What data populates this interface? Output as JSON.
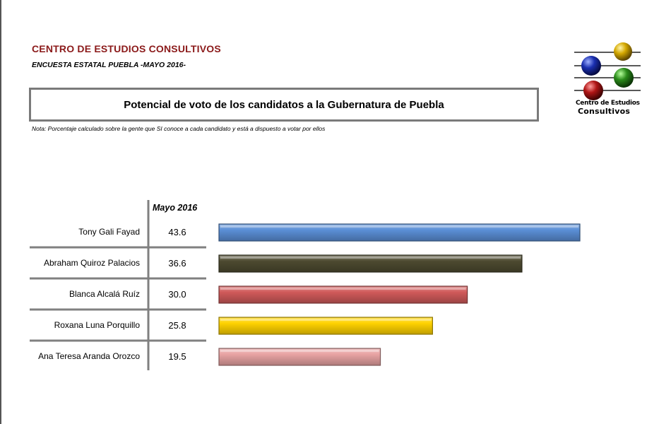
{
  "header": {
    "org_title": "CENTRO DE ESTUDIOS CONSULTIVOS",
    "survey_title": "ENCUESTA ESTATAL PUEBLA -MAYO 2016-",
    "chart_title": "Potencial de voto de los candidatos a la Gubernatura de Puebla",
    "note": "Nota: Porcentaje calculado sobre la gente que SI conoce a cada candidato y está a dispuesto a votar por ellos"
  },
  "logo": {
    "line1": "Centro de Estudios",
    "line2": "Consultivos",
    "ball_colors": [
      "#d4a800",
      "#1a2fb0",
      "#2a8a1a",
      "#b01515"
    ]
  },
  "chart_data": {
    "type": "bar",
    "orientation": "horizontal",
    "column_header": "Mayo 2016",
    "categories": [
      "Tony Gali Fayad",
      "Abraham Quiroz Palacios",
      "Blanca Alcalá Ruíz",
      "Roxana Luna Porquillo",
      "Ana Teresa Aranda Orozco"
    ],
    "values": [
      43.6,
      36.6,
      30.0,
      25.8,
      19.5
    ],
    "value_labels": [
      "43.6",
      "36.6",
      "30.0",
      "25.8",
      "19.5"
    ],
    "colors": [
      "#5b8fd6",
      "#4d4a30",
      "#d05a5a",
      "#ffd200",
      "#e8a3a3"
    ],
    "xlim": [
      0,
      45
    ],
    "grid": false
  }
}
